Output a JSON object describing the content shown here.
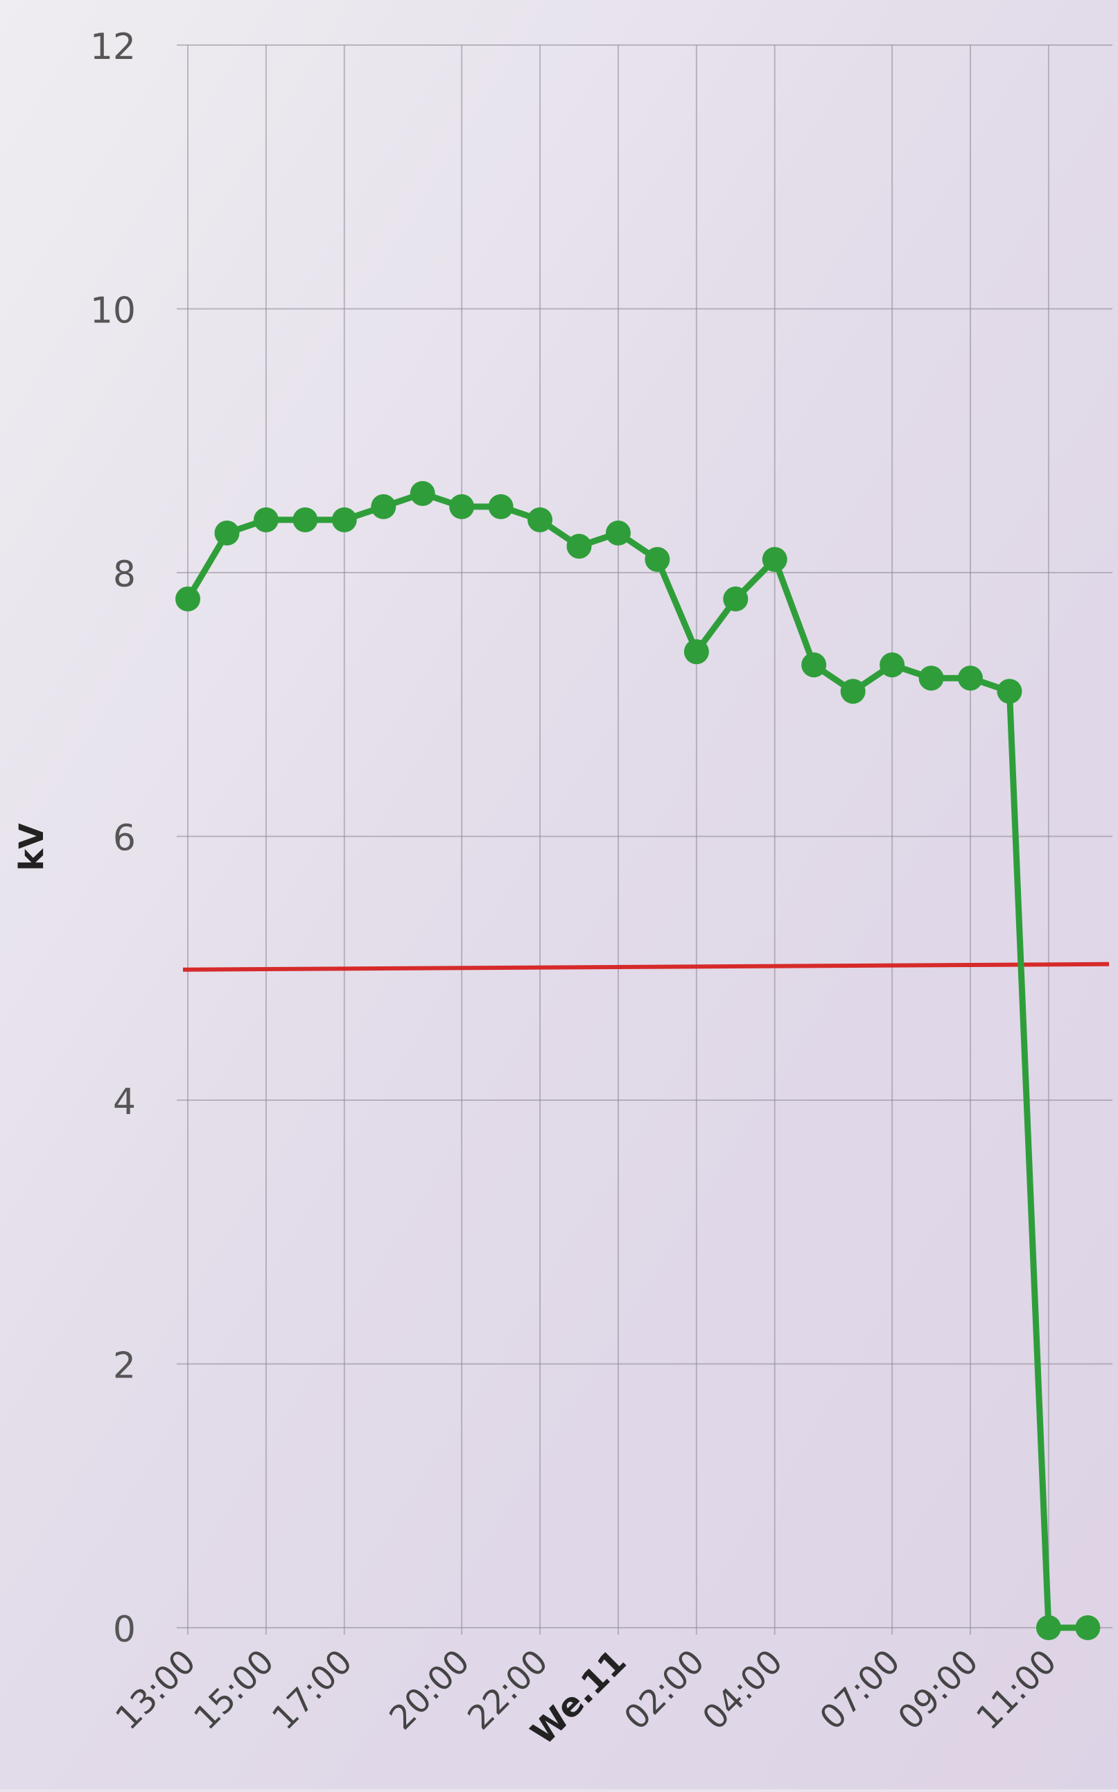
{
  "chart_data": {
    "type": "line",
    "title": "",
    "xlabel": "",
    "ylabel": "kV",
    "ylim": [
      0,
      12
    ],
    "yticks": [
      0,
      2,
      4,
      6,
      8,
      10,
      12
    ],
    "x_tick_labels": [
      {
        "label": "13:00",
        "hour": 0
      },
      {
        "label": "15:00",
        "hour": 2
      },
      {
        "label": "17:00",
        "hour": 4
      },
      {
        "label": "20:00",
        "hour": 7
      },
      {
        "label": "22:00",
        "hour": 9
      },
      {
        "label": "We.11",
        "hour": 11
      },
      {
        "label": "02:00",
        "hour": 13
      },
      {
        "label": "04:00",
        "hour": 15
      },
      {
        "label": "07:00",
        "hour": 18
      },
      {
        "label": "09:00",
        "hour": 20
      },
      {
        "label": "11:00",
        "hour": 22
      }
    ],
    "grid": true,
    "threshold": {
      "value": 5.0,
      "color": "#d62a2a"
    },
    "series": [
      {
        "name": "",
        "color": "#2f9e3a",
        "points": [
          {
            "x": 0,
            "y": 7.8
          },
          {
            "x": 1,
            "y": 8.3
          },
          {
            "x": 2,
            "y": 8.4
          },
          {
            "x": 3,
            "y": 8.4
          },
          {
            "x": 4,
            "y": 8.4
          },
          {
            "x": 5,
            "y": 8.5
          },
          {
            "x": 6,
            "y": 8.6
          },
          {
            "x": 7,
            "y": 8.5
          },
          {
            "x": 8,
            "y": 8.5
          },
          {
            "x": 9,
            "y": 8.4
          },
          {
            "x": 10,
            "y": 8.2
          },
          {
            "x": 11,
            "y": 8.3
          },
          {
            "x": 12,
            "y": 8.1
          },
          {
            "x": 13,
            "y": 7.4
          },
          {
            "x": 14,
            "y": 7.8
          },
          {
            "x": 15,
            "y": 8.1
          },
          {
            "x": 16,
            "y": 7.3
          },
          {
            "x": 17,
            "y": 7.1
          },
          {
            "x": 18,
            "y": 7.3
          },
          {
            "x": 19,
            "y": 7.2
          },
          {
            "x": 20,
            "y": 7.2
          },
          {
            "x": 21,
            "y": 7.1
          },
          {
            "x": 22,
            "y": 0
          },
          {
            "x": 23,
            "y": 0
          }
        ]
      }
    ]
  }
}
